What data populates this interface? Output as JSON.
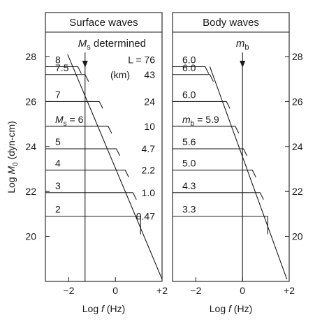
{
  "colors": {
    "ink": "#1a1a1a",
    "background": "#ffffff"
  },
  "ylabel_prefix": "Log ",
  "ylabel_sym": "M",
  "ylabel_sub": "0",
  "ylabel_unit": " (dyn-cm)",
  "chart_data": [
    {
      "type": "line",
      "title": "Surface waves",
      "xlabel": "Log f (Hz)",
      "ylabel": "Log M0 (dyn-cm)",
      "xlim": [
        -3,
        2
      ],
      "ylim": [
        18,
        29
      ],
      "x_ticks": [
        -2,
        0,
        2
      ],
      "x_tick_labels": [
        "−2",
        "0",
        "+2"
      ],
      "y_ticks": [
        20,
        22,
        24,
        26,
        28
      ],
      "y_ticks_side": "left",
      "grid": false,
      "legend": "none",
      "reference_line": {
        "x": -1.3,
        "label_sym": "M",
        "label_sub": "s",
        "label_rest": " determined"
      },
      "rupture_header": [
        "L = 76",
        "(km)"
      ],
      "series": [
        {
          "label": "8",
          "plateau": 27.55,
          "corner_x": -1.61,
          "L": "76"
        },
        {
          "label": "7.5",
          "plateau": 27.2,
          "corner_x": -1.3,
          "L": "43"
        },
        {
          "label": "7",
          "plateau": 26.0,
          "corner_x": -0.69,
          "L": "24"
        },
        {
          "sym": "M",
          "sub": "s",
          "rest": " = 6",
          "plateau": 24.9,
          "corner_x": -0.31,
          "L": "10"
        },
        {
          "label": "5",
          "plateau": 23.9,
          "corner_x": 0.04,
          "L": "4.7"
        },
        {
          "label": "4",
          "plateau": 22.95,
          "corner_x": 0.42,
          "L": "2.2"
        },
        {
          "label": "3",
          "plateau": 21.95,
          "corner_x": 0.75,
          "L": "1.0"
        },
        {
          "label": "2",
          "plateau": 20.9,
          "corner_x": 1.08,
          "L": "0.47"
        }
      ],
      "high_frequency_line": [
        [
          -2.05,
          28.1
        ],
        [
          2.0,
          18.1
        ]
      ],
      "bend_point": [
        1.08,
        20.1
      ]
    },
    {
      "type": "line",
      "title": "Body waves",
      "xlabel": "Log f (Hz)",
      "xlim": [
        -3,
        2
      ],
      "ylim": [
        18,
        29
      ],
      "x_ticks": [
        -2,
        0,
        2
      ],
      "x_tick_labels": [
        "−2",
        "0",
        "+2"
      ],
      "y_ticks": [
        20,
        22,
        24,
        26,
        28
      ],
      "y_ticks_side": "right",
      "grid": false,
      "legend": "none",
      "reference_line": {
        "x": 0,
        "label_sym": "m",
        "label_sub": "b",
        "label_rest": ""
      },
      "series": [
        {
          "label": "6.0",
          "plateau": 27.55,
          "corner_x": -1.6,
          "L": ""
        },
        {
          "label": "6.0",
          "plateau": 27.2,
          "corner_x": -1.4,
          "L": ""
        },
        {
          "label": "6.0",
          "plateau": 26.0,
          "corner_x": -0.69,
          "L": ""
        },
        {
          "sym": "m",
          "sub": "b",
          "rest": " = 5.9",
          "plateau": 24.9,
          "corner_x": -0.31,
          "L": ""
        },
        {
          "label": "5.6",
          "plateau": 23.9,
          "corner_x": 0.04,
          "L": ""
        },
        {
          "label": "5.0",
          "plateau": 22.95,
          "corner_x": 0.42,
          "L": ""
        },
        {
          "label": "4.3",
          "plateau": 21.95,
          "corner_x": 0.75,
          "L": ""
        },
        {
          "label": "3.3",
          "plateau": 20.9,
          "corner_x": 1.08,
          "L": ""
        }
      ],
      "high_frequency_line": [
        [
          -1.4,
          27.55
        ],
        [
          1.9,
          18.1
        ]
      ],
      "bend_point": [
        1.08,
        20.1
      ]
    }
  ]
}
